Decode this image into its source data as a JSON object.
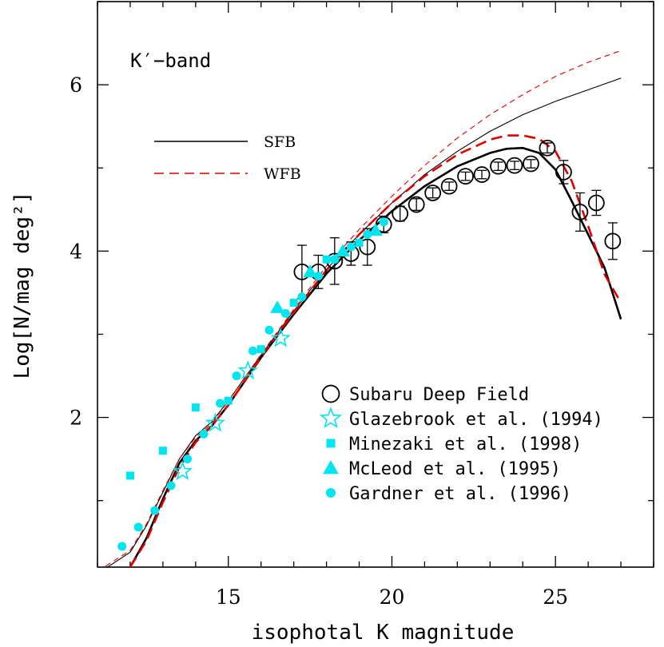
{
  "chart_data": {
    "type": "scatter",
    "band_label": "K′−band",
    "xlabel": "isophotal K magnitude",
    "ylabel": "Log[N/mag deg²]",
    "xlim": [
      11,
      28
    ],
    "ylim": [
      0.2,
      7.0
    ],
    "xticks": [
      15,
      20,
      25
    ],
    "yticks": [
      2,
      4,
      6
    ],
    "x_minor_step": 1,
    "y_minor_step": 1,
    "grid": false,
    "curve_legend": [
      {
        "name": "SFB",
        "color": "#000000",
        "style": "solid"
      },
      {
        "name": "WFB",
        "color": "#dd0000",
        "style": "dashed"
      }
    ],
    "curves": [
      {
        "name": "SFB",
        "style": "solid",
        "color": "#000000",
        "weight": "thin",
        "x": [
          11.0,
          12.0,
          12.5,
          13.0,
          13.5,
          14.0,
          14.5,
          15.0,
          16.0,
          17.0,
          18.0,
          19.0,
          20.0,
          21.0,
          22.0,
          23.0,
          24.0,
          25.0,
          26.0,
          27.0
        ],
        "y": [
          0.12,
          0.38,
          0.7,
          1.1,
          1.5,
          1.78,
          1.95,
          2.2,
          2.75,
          3.28,
          3.78,
          4.2,
          4.58,
          4.92,
          5.2,
          5.44,
          5.64,
          5.8,
          5.94,
          6.08
        ]
      },
      {
        "name": "WFB",
        "style": "dashed",
        "color": "#dd0000",
        "weight": "thin",
        "x": [
          11.0,
          12.0,
          12.5,
          13.0,
          13.5,
          14.0,
          14.5,
          15.0,
          16.0,
          17.0,
          18.0,
          19.0,
          20.0,
          21.0,
          22.0,
          23.0,
          24.0,
          25.0,
          26.0,
          27.0
        ],
        "y": [
          0.15,
          0.4,
          0.72,
          1.12,
          1.5,
          1.76,
          1.93,
          2.2,
          2.76,
          3.3,
          3.82,
          4.26,
          4.66,
          5.03,
          5.36,
          5.64,
          5.88,
          6.1,
          6.27,
          6.41
        ]
      },
      {
        "name": "SFB",
        "style": "solid",
        "color": "#000000",
        "weight": "thick",
        "x": [
          12.0,
          12.5,
          13.0,
          13.5,
          14.0,
          14.5,
          15.0,
          16.0,
          17.0,
          18.0,
          19.0,
          20.0,
          21.0,
          22.0,
          23.0,
          23.5,
          24.0,
          24.5,
          25.0,
          25.5,
          26.0,
          26.5,
          27.0
        ],
        "y": [
          0.2,
          0.55,
          1.02,
          1.45,
          1.72,
          1.9,
          2.15,
          2.72,
          3.24,
          3.73,
          4.13,
          4.48,
          4.78,
          5.02,
          5.18,
          5.23,
          5.24,
          5.18,
          4.98,
          4.6,
          4.2,
          3.8,
          3.18
        ]
      },
      {
        "name": "WFB",
        "style": "dashed",
        "color": "#dd0000",
        "weight": "thick",
        "x": [
          12.0,
          12.5,
          13.0,
          13.5,
          14.0,
          14.5,
          15.0,
          16.0,
          17.0,
          18.0,
          19.0,
          20.0,
          21.0,
          22.0,
          23.0,
          23.5,
          24.0,
          24.5,
          25.0,
          25.5,
          26.0,
          26.5,
          27.0
        ],
        "y": [
          0.2,
          0.52,
          0.98,
          1.4,
          1.7,
          1.9,
          2.15,
          2.73,
          3.26,
          3.77,
          4.2,
          4.58,
          4.9,
          5.16,
          5.34,
          5.39,
          5.39,
          5.35,
          5.2,
          4.84,
          4.3,
          3.72,
          3.38
        ]
      }
    ],
    "data_legend": [
      {
        "label": "Subaru Deep Field",
        "marker": "open-circle",
        "color": "#000000"
      },
      {
        "label": "Glazebrook et al. (1994)",
        "marker": "open-star",
        "color": "#00e5ee"
      },
      {
        "label": "Minezaki et al. (1998)",
        "marker": "square",
        "color": "#00e5ee"
      },
      {
        "label": "McLeod et al. (1995)",
        "marker": "triangle",
        "color": "#00e5ee"
      },
      {
        "label": "Gardner et al. (1996)",
        "marker": "filled-circle",
        "color": "#00e5ee"
      }
    ],
    "series": [
      {
        "name": "Subaru Deep Field",
        "marker": "open-circle",
        "color": "#000000",
        "x": [
          17.25,
          17.75,
          18.25,
          18.75,
          19.25,
          19.75,
          20.25,
          20.75,
          21.25,
          21.75,
          22.25,
          22.75,
          23.25,
          23.75,
          24.25,
          24.75,
          25.25,
          25.75,
          26.25,
          26.75
        ],
        "y": [
          3.75,
          3.75,
          3.88,
          3.97,
          4.05,
          4.32,
          4.45,
          4.56,
          4.7,
          4.78,
          4.9,
          4.92,
          5.02,
          5.03,
          5.05,
          5.24,
          4.95,
          4.47,
          4.58,
          4.12
        ],
        "err": [
          0.32,
          0.2,
          0.28,
          0.14,
          0.22,
          0.1,
          0.09,
          0.07,
          0.06,
          0.05,
          0.05,
          0.05,
          0.05,
          0.05,
          0.05,
          0.06,
          0.14,
          0.23,
          0.15,
          0.22
        ]
      },
      {
        "name": "Glazebrook et al. (1994)",
        "marker": "open-star",
        "color": "#00e5ee",
        "x": [
          13.6,
          14.6,
          15.6,
          16.6
        ],
        "y": [
          1.35,
          1.93,
          2.56,
          2.95
        ]
      },
      {
        "name": "Minezaki et al. (1998)",
        "marker": "square",
        "color": "#00e5ee",
        "x": [
          12.0,
          13.0,
          14.0,
          15.0,
          16.0,
          17.0,
          18.0,
          19.0
        ],
        "y": [
          1.3,
          1.6,
          2.12,
          2.2,
          2.82,
          3.38,
          3.9,
          4.1
        ]
      },
      {
        "name": "McLeod et al. (1995)",
        "marker": "triangle",
        "color": "#00e5ee",
        "x": [
          16.5,
          17.5,
          18.5,
          19.5
        ],
        "y": [
          3.32,
          3.75,
          4.0,
          4.25
        ]
      },
      {
        "name": "Gardner et al. (1996)",
        "marker": "filled-circle",
        "color": "#00e5ee",
        "x": [
          11.75,
          12.25,
          12.75,
          13.25,
          13.75,
          14.25,
          14.75,
          15.25,
          15.75,
          16.25,
          16.75,
          17.25,
          17.75,
          18.25,
          18.75,
          19.25,
          19.75
        ],
        "y": [
          0.45,
          0.68,
          0.88,
          1.18,
          1.5,
          1.8,
          2.17,
          2.5,
          2.8,
          3.05,
          3.25,
          3.45,
          3.7,
          3.9,
          4.05,
          4.2,
          4.35
        ]
      }
    ]
  }
}
